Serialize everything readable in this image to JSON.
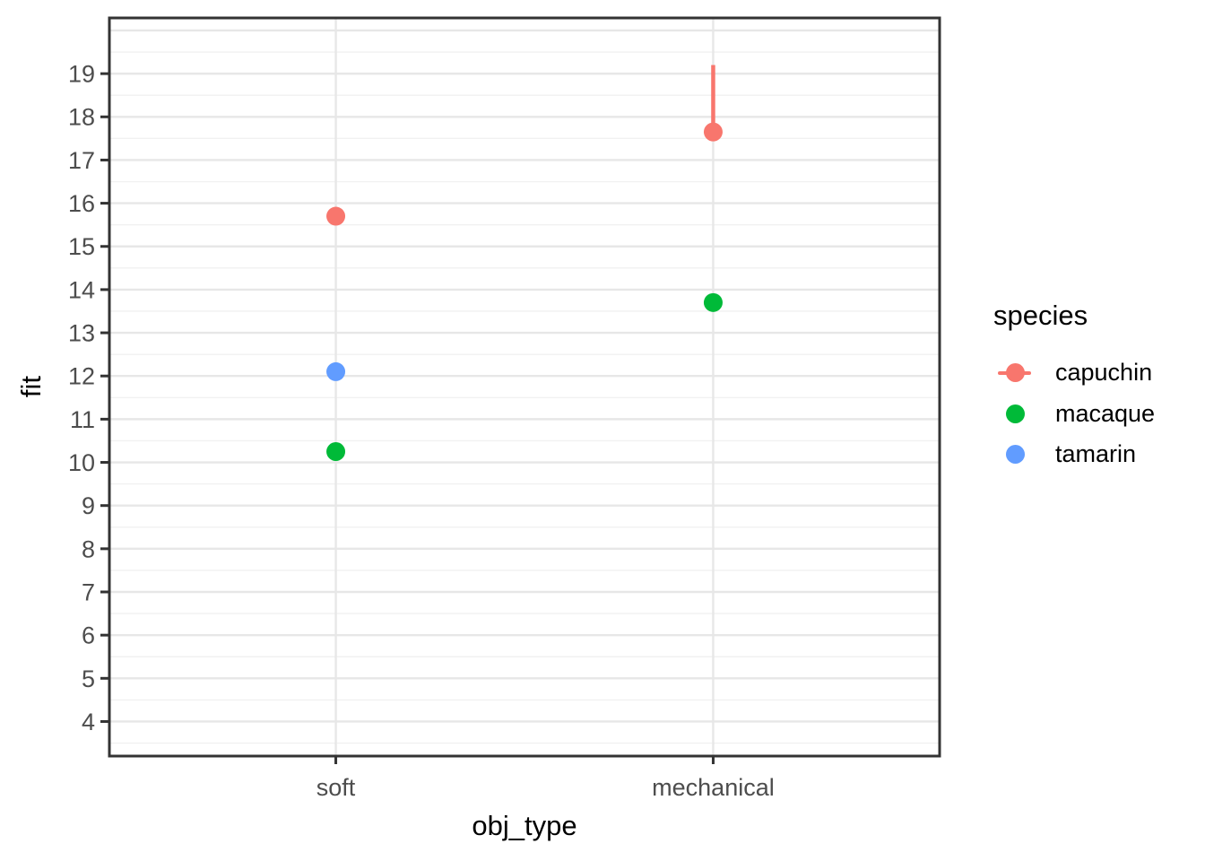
{
  "chart_data": {
    "type": "pointrange",
    "title": "",
    "xlabel": "obj_type",
    "ylabel": "fit",
    "x_categories": [
      "soft",
      "mechanical"
    ],
    "y_ticks": [
      4,
      5,
      6,
      7,
      8,
      9,
      10,
      11,
      12,
      13,
      14,
      15,
      16,
      17,
      18,
      19
    ],
    "ylim": [
      3.2,
      20.29
    ],
    "grid": {
      "major_color": "#E7E7E7",
      "minor_color": "#F1F1F1",
      "minor_step": 0.5,
      "vertical_major_on_categories": true
    },
    "panel": {
      "background": "#FFFFFF",
      "border_color": "#333333"
    },
    "axis": {
      "text_color": "#4D4D4D",
      "tick_color": "#333333",
      "title_color": "#000000"
    },
    "legend": {
      "title": "species",
      "position": "right"
    },
    "series": [
      {
        "name": "capuchin",
        "color": "#F8766D",
        "legend_glyph": "point-with-line",
        "points": [
          {
            "x": "soft",
            "fit": 15.7
          },
          {
            "x": "mechanical",
            "fit": 17.65,
            "upper": 19.2
          }
        ]
      },
      {
        "name": "macaque",
        "color": "#00BA38",
        "legend_glyph": "point",
        "points": [
          {
            "x": "soft",
            "fit": 10.25
          },
          {
            "x": "mechanical",
            "fit": 13.7
          }
        ]
      },
      {
        "name": "tamarin",
        "color": "#619CFF",
        "legend_glyph": "point",
        "points": [
          {
            "x": "soft",
            "fit": 12.1
          }
        ]
      }
    ]
  }
}
